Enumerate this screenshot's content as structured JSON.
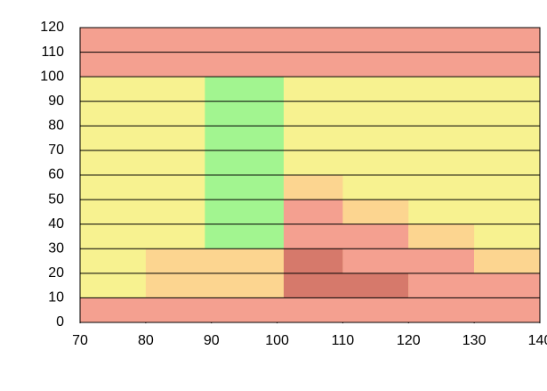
{
  "chart_data": {
    "type": "zones",
    "xlim": [
      70,
      140
    ],
    "xticks": [
      70,
      80,
      90,
      100,
      110,
      120,
      130,
      140
    ],
    "ylim": [
      0,
      120
    ],
    "yticks": [
      0,
      10,
      20,
      30,
      40,
      50,
      60,
      70,
      80,
      90,
      100,
      110,
      120
    ],
    "grid": true,
    "regions": [
      {
        "x": [
          70,
          140
        ],
        "y": [
          100,
          120
        ],
        "color": "#f4a090"
      },
      {
        "x": [
          70,
          140
        ],
        "y": [
          0,
          10
        ],
        "color": "#f4a090"
      },
      {
        "x": [
          70,
          140
        ],
        "y": [
          10,
          100
        ],
        "color": "#f7f290"
      },
      {
        "x": [
          89,
          101
        ],
        "y": [
          30,
          100
        ],
        "color": "#a2f590"
      },
      {
        "x": [
          80,
          101
        ],
        "y": [
          10,
          30
        ],
        "color": "#fcd590"
      },
      {
        "x": [
          101,
          110
        ],
        "y": [
          50,
          60
        ],
        "color": "#fcd590"
      },
      {
        "x": [
          101,
          110
        ],
        "y": [
          40,
          50
        ],
        "color": "#f4a090"
      },
      {
        "x": [
          110,
          120
        ],
        "y": [
          40,
          50
        ],
        "color": "#fcd590"
      },
      {
        "x": [
          101,
          120
        ],
        "y": [
          30,
          40
        ],
        "color": "#f4a090"
      },
      {
        "x": [
          120,
          130
        ],
        "y": [
          30,
          40
        ],
        "color": "#fcd590"
      },
      {
        "x": [
          101,
          110
        ],
        "y": [
          20,
          30
        ],
        "color": "#d6796b"
      },
      {
        "x": [
          110,
          130
        ],
        "y": [
          20,
          30
        ],
        "color": "#f4a090"
      },
      {
        "x": [
          130,
          140
        ],
        "y": [
          20,
          30
        ],
        "color": "#fcd590"
      },
      {
        "x": [
          101,
          120
        ],
        "y": [
          10,
          20
        ],
        "color": "#d6796b"
      },
      {
        "x": [
          120,
          140
        ],
        "y": [
          10,
          20
        ],
        "color": "#f4a090"
      }
    ]
  }
}
